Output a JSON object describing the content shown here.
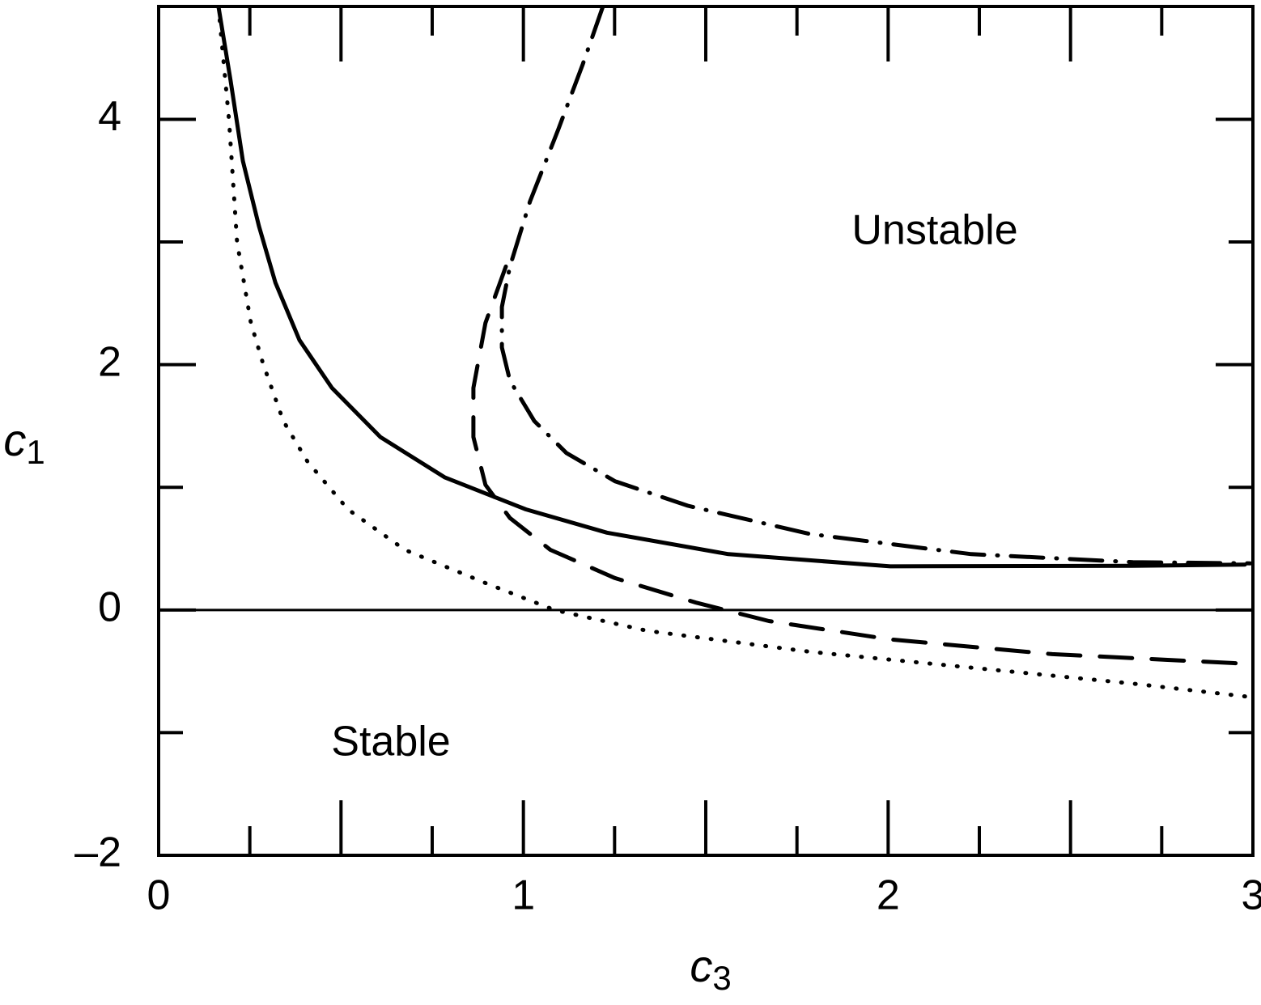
{
  "chart_data": {
    "type": "line",
    "xlabel": "c",
    "xlabel_sub": "3",
    "ylabel": "c",
    "ylabel_sub": "1",
    "xlim": [
      0,
      3
    ],
    "ylim": [
      -2,
      4.92
    ],
    "xticks": [
      0,
      1,
      2,
      3
    ],
    "xminor_ticks": [
      0.25,
      0.5,
      0.75,
      1.25,
      1.5,
      1.75,
      2.25,
      2.5,
      2.75
    ],
    "yticks": [
      {
        "value": -2,
        "label": "–2"
      },
      0,
      2,
      4
    ],
    "yminor_ticks": [
      -1,
      1,
      3
    ],
    "hline": 0,
    "annotations": [
      "Unstable",
      "Stable"
    ],
    "series": [
      {
        "color": "#000000",
        "dash": "solid",
        "x": [
          0.164,
          0.197,
          0.231,
          0.275,
          0.32,
          0.386,
          0.475,
          0.608,
          0.785,
          1.007,
          1.229,
          1.562,
          2.006,
          2.67,
          2.978
        ],
        "values": [
          4.92,
          4.32,
          3.66,
          3.13,
          2.67,
          2.2,
          1.81,
          1.41,
          1.08,
          0.82,
          0.63,
          0.455,
          0.356,
          0.36,
          0.37
        ]
      },
      {
        "color": "#000000",
        "dash": "dotted",
        "x": [
          0.164,
          0.193,
          0.215,
          0.253,
          0.286,
          0.342,
          0.408,
          0.519,
          0.675,
          0.896,
          1.085,
          1.34,
          1.784,
          2.228,
          2.671,
          2.993
        ],
        "values": [
          4.92,
          3.99,
          3.0,
          2.34,
          2.01,
          1.54,
          1.21,
          0.82,
          0.49,
          0.22,
          0,
          -0.17,
          -0.34,
          -0.47,
          -0.6,
          -0.71
        ]
      },
      {
        "color": "#000000",
        "dash": "dashed",
        "x": [
          0.952,
          0.896,
          0.863,
          0.863,
          0.896,
          0.963,
          1.074,
          1.251,
          1.473,
          1.673,
          2.006,
          2.45,
          2.993
        ],
        "values": [
          2.8,
          2.34,
          1.81,
          1.41,
          1.02,
          0.75,
          0.49,
          0.26,
          0.06,
          -0.09,
          -0.24,
          -0.36,
          -0.44
        ]
      },
      {
        "color": "#000000",
        "dash": "dashdot",
        "x": [
          1.218,
          1.163,
          1.096,
          1.018,
          0.963,
          0.941,
          0.941,
          0.963,
          1.03,
          1.118,
          1.251,
          1.451,
          1.784,
          2.228,
          2.671,
          2.993
        ],
        "values": [
          4.92,
          4.45,
          3.92,
          3.33,
          2.8,
          2.47,
          2.14,
          1.87,
          1.54,
          1.28,
          1.05,
          0.85,
          0.62,
          0.455,
          0.39,
          0.38
        ]
      }
    ]
  }
}
